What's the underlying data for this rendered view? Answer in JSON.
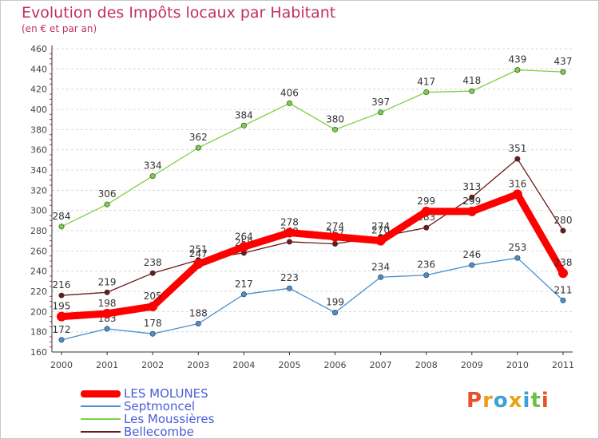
{
  "title": "Evolution des Impôts locaux par Habitant",
  "subtitle": "(en € et par an)",
  "logo": {
    "letters": [
      "P",
      "r",
      "o",
      "x",
      "i",
      "t",
      "i"
    ],
    "colors": [
      "#e8522a",
      "#e8a21a",
      "#3aa0d8",
      "#e8a21a",
      "#3aa0d8",
      "#6cc04a",
      "#e8522a"
    ]
  },
  "chart_data": {
    "type": "line",
    "x": [
      "2000",
      "2001",
      "2002",
      "2003",
      "2004",
      "2005",
      "2006",
      "2007",
      "2008",
      "2009",
      "2010",
      "2011"
    ],
    "ylim": [
      160,
      460
    ],
    "yticks": [
      "160",
      "180",
      "200",
      "220",
      "240",
      "260",
      "280",
      "300",
      "320",
      "340",
      "360",
      "380",
      "400",
      "420",
      "440",
      "460"
    ],
    "grid": "horizontal",
    "legend_position": "bottom-left",
    "series": [
      {
        "name": "LES MOLUNES",
        "color": "#ff0000",
        "values": [
          195,
          198,
          205,
          247,
          264,
          278,
          274,
          270,
          299,
          299,
          316,
          238
        ],
        "labels": [
          "195",
          "198",
          "205",
          "247",
          "264",
          "278",
          "274",
          "270",
          "299",
          "299",
          "316",
          "238"
        ]
      },
      {
        "name": "Septmoncel",
        "color": "#4a8ed0",
        "values": [
          172,
          183,
          178,
          188,
          217,
          223,
          199,
          234,
          236,
          246,
          253,
          211
        ],
        "labels": [
          "172",
          "183",
          "178",
          "188",
          "217",
          "223",
          "199",
          "234",
          "236",
          "246",
          "253",
          "211"
        ]
      },
      {
        "name": "Les Moussières",
        "color": "#7cd142",
        "values": [
          284,
          306,
          334,
          362,
          384,
          406,
          380,
          397,
          417,
          418,
          439,
          437
        ],
        "labels": [
          "284",
          "306",
          "334",
          "362",
          "384",
          "406",
          "380",
          "397",
          "417",
          "418",
          "439",
          "437"
        ]
      },
      {
        "name": "Bellecombe",
        "color": "#6b1a1a",
        "values": [
          216,
          219,
          238,
          251,
          258,
          269,
          267,
          274,
          283,
          313,
          351,
          280
        ],
        "labels": [
          "216",
          "219",
          "238",
          "251",
          "258",
          "269",
          "267",
          "274",
          "283",
          "313",
          "351",
          "280"
        ]
      }
    ]
  }
}
